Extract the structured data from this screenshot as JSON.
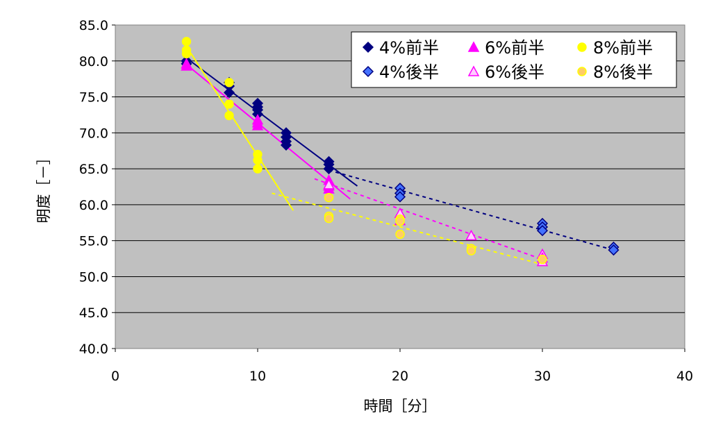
{
  "chart_data": {
    "type": "scatter",
    "title": "",
    "xlabel": "時間［分］",
    "ylabel": "明度［－］",
    "xlim": [
      0,
      40
    ],
    "ylim": [
      40,
      85
    ],
    "x_ticks": [
      "0",
      "10",
      "20",
      "30",
      "40"
    ],
    "y_ticks": [
      "40.0",
      "45.0",
      "50.0",
      "55.0",
      "60.0",
      "65.0",
      "70.0",
      "75.0",
      "80.0",
      "85.0"
    ],
    "grid": "horizontal",
    "plot_background": "#c0c0c0",
    "legend_position": "top-right",
    "series": [
      {
        "name": "4%前半",
        "marker": "diamond",
        "color": "#000080",
        "fill": "#000080",
        "points": [
          [
            5,
            80.0
          ],
          [
            5,
            79.6
          ],
          [
            8,
            77.0
          ],
          [
            8,
            76.5
          ],
          [
            8,
            75.6
          ],
          [
            10,
            74.1
          ],
          [
            10,
            73.6
          ],
          [
            10,
            73.2
          ],
          [
            10,
            72.6
          ],
          [
            12,
            70.0
          ],
          [
            12,
            69.4
          ],
          [
            12,
            68.8
          ],
          [
            12,
            68.3
          ],
          [
            15,
            66.0
          ],
          [
            15,
            65.6
          ],
          [
            15,
            65.0
          ]
        ],
        "trendline": {
          "style": "solid",
          "x": [
            5,
            17
          ],
          "y": [
            80.4,
            62.6
          ]
        }
      },
      {
        "name": "6%前半",
        "marker": "triangle",
        "color": "#ff00ff",
        "fill": "#ff00ff",
        "points": [
          [
            5,
            79.6
          ],
          [
            5,
            79.3
          ],
          [
            10,
            71.8
          ],
          [
            10,
            71.4
          ],
          [
            10,
            71.0
          ],
          [
            15,
            63.4
          ],
          [
            15,
            62.6
          ],
          [
            15,
            62.2
          ]
        ],
        "trendline": {
          "style": "solid",
          "x": [
            5,
            16.5
          ],
          "y": [
            79.5,
            60.8
          ]
        }
      },
      {
        "name": "8%前半",
        "marker": "circle",
        "color": "#ffff00",
        "fill": "#ffff00",
        "points": [
          [
            5,
            82.7
          ],
          [
            5,
            81.5
          ],
          [
            5,
            81.0
          ],
          [
            8,
            77.0
          ],
          [
            8,
            74.0
          ],
          [
            8,
            72.4
          ],
          [
            10,
            67.0
          ],
          [
            10,
            66.2
          ],
          [
            10,
            65.0
          ]
        ],
        "trendline": {
          "style": "solid",
          "x": [
            5,
            12.5
          ],
          "y": [
            82.0,
            59.2
          ]
        }
      },
      {
        "name": "4%後半",
        "marker": "diamond",
        "color": "#000080",
        "fill": "#4472ff",
        "points": [
          [
            20,
            62.3
          ],
          [
            20,
            61.6
          ],
          [
            20,
            61.1
          ],
          [
            30,
            57.4
          ],
          [
            30,
            56.9
          ],
          [
            30,
            56.4
          ],
          [
            35,
            54.1
          ],
          [
            35,
            53.7
          ]
        ],
        "trendline": {
          "style": "dashed",
          "x": [
            15,
            35
          ],
          "y": [
            64.8,
            53.7
          ]
        }
      },
      {
        "name": "6%後半",
        "marker": "triangle",
        "color": "#ff00ff",
        "fill": "#ffccff",
        "points": [
          [
            15,
            62.8
          ],
          [
            20,
            58.8
          ],
          [
            20,
            57.8
          ],
          [
            25,
            55.7
          ],
          [
            30,
            53.1
          ],
          [
            30,
            52.6
          ],
          [
            30,
            52.1
          ]
        ],
        "trendline": {
          "style": "dashed",
          "x": [
            14,
            30
          ],
          "y": [
            63.6,
            52.4
          ]
        }
      },
      {
        "name": "8%後半",
        "marker": "circle",
        "color": "#ffff00",
        "fill": "#ffcc66",
        "points": [
          [
            15,
            61.0
          ],
          [
            15,
            58.4
          ],
          [
            15,
            58.1
          ],
          [
            20,
            58.0
          ],
          [
            20,
            57.7
          ],
          [
            20,
            55.9
          ],
          [
            25,
            53.9
          ],
          [
            25,
            53.6
          ],
          [
            30,
            52.4
          ]
        ],
        "trendline": {
          "style": "dashed",
          "x": [
            11,
            30
          ],
          "y": [
            61.6,
            51.7
          ]
        }
      }
    ]
  }
}
